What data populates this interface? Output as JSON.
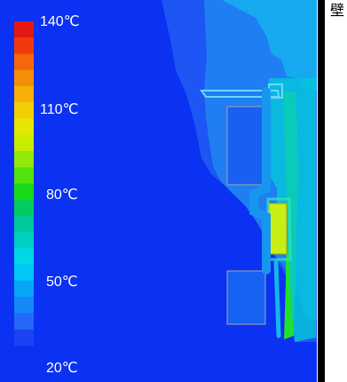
{
  "legend": {
    "labels": [
      "140℃",
      "110℃",
      "80℃",
      "50℃",
      "20℃"
    ],
    "colors": [
      "#e31812",
      "#f13a0b",
      "#f5670a",
      "#f58f07",
      "#f6b007",
      "#f1ce06",
      "#e5e603",
      "#c8ed03",
      "#91e90a",
      "#54e30f",
      "#18d91a",
      "#00cc5f",
      "#00c79c",
      "#00d0c3",
      "#00d8e5",
      "#00c7f5",
      "#05a6f6",
      "#1388f7",
      "#2368f8",
      "#1b43f3"
    ]
  },
  "wall": {
    "label": "壁"
  },
  "thermal_colors": {
    "background": "#0b31f2",
    "cool": "#0f5ef4",
    "medium": "#2a8ef0",
    "warm": "#22e12b",
    "hot": "#c9ee14",
    "edge": "#a6a6a6"
  }
}
